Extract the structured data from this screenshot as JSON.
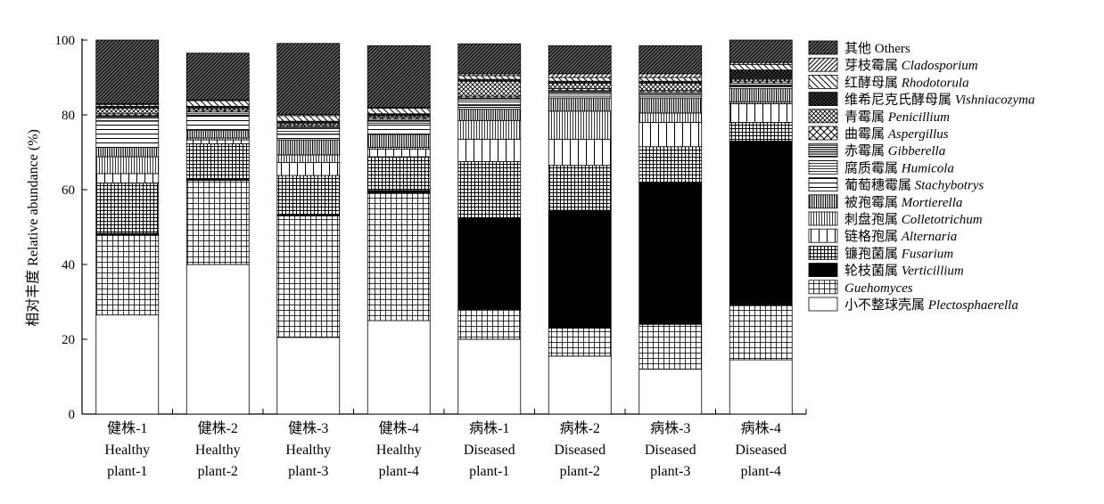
{
  "chart_data": {
    "type": "bar",
    "stacked": true,
    "ylabel": "相对丰度 Relative abundance (%)",
    "ylim": [
      0,
      100
    ],
    "yticks": [
      0,
      20,
      40,
      60,
      80,
      100
    ],
    "grid": false,
    "legend_placement": "right",
    "categories": [
      {
        "line1": "健株-1",
        "line2": "Healthy",
        "line3": "plant-1"
      },
      {
        "line1": "健株-2",
        "line2": "Healthy",
        "line3": "plant-2"
      },
      {
        "line1": "健株-3",
        "line2": "Healthy",
        "line3": "plant-3"
      },
      {
        "line1": "健株-4",
        "line2": "Healthy",
        "line3": "plant-4"
      },
      {
        "line1": "病株-1",
        "line2": "Diseased",
        "line3": "plant-1"
      },
      {
        "line1": "病株-2",
        "line2": "Diseased",
        "line3": "plant-2"
      },
      {
        "line1": "病株-3",
        "line2": "Diseased",
        "line3": "plant-3"
      },
      {
        "line1": "病株-4",
        "line2": "Diseased",
        "line3": "plant-4"
      }
    ],
    "series": [
      {
        "cn": "小不整球壳属",
        "latin": "Plectosphaerella",
        "pattern": "white",
        "values": [
          26.5,
          40,
          20.5,
          25,
          20,
          15.5,
          12,
          14.5
        ]
      },
      {
        "cn": "",
        "latin": "Guehomyces",
        "pattern": "grid-fine",
        "values": [
          21.5,
          22.5,
          32.5,
          34,
          8,
          7.5,
          12,
          14.5
        ]
      },
      {
        "cn": "轮枝菌属",
        "latin": "Verticillium",
        "pattern": "black",
        "values": [
          0.3,
          0.3,
          0.3,
          0.8,
          24.5,
          31.5,
          38,
          44
        ]
      },
      {
        "cn": "镰孢菌属",
        "latin": "Fusarium",
        "pattern": "grid-dense",
        "values": [
          13.5,
          9.5,
          10.5,
          9,
          15,
          12,
          9.5,
          5
        ]
      },
      {
        "cn": "链格孢属",
        "latin": "Alternaria",
        "pattern": "vlines-wide",
        "values": [
          2.5,
          1,
          3.5,
          2,
          6,
          7,
          6.5,
          5
        ]
      },
      {
        "cn": "刺盘孢属",
        "latin": "Colletotrichum",
        "pattern": "vlines-fine",
        "values": [
          4.5,
          0.5,
          2,
          0.5,
          5,
          7.5,
          2.5,
          0.5
        ]
      },
      {
        "cn": "被孢霉属",
        "latin": "Mortierella",
        "pattern": "vlines-dense",
        "values": [
          2.5,
          2,
          4,
          3.5,
          3,
          3.5,
          4,
          3.5
        ]
      },
      {
        "cn": "葡萄穗霉属",
        "latin": "Stachybotrys",
        "pattern": "hlines-wide",
        "values": [
          7,
          4,
          1.5,
          3,
          1,
          0.5,
          0.5,
          0.5
        ]
      },
      {
        "cn": "腐质霉属",
        "latin": "Humicola",
        "pattern": "hlines-fine",
        "values": [
          1,
          0.5,
          1.5,
          0.5,
          1.5,
          1,
          0.5,
          0.5
        ]
      },
      {
        "cn": "赤霉属",
        "latin": "Gibberella",
        "pattern": "hlines-dense",
        "values": [
          0.5,
          0.5,
          0.5,
          0.5,
          0.5,
          0.5,
          0.5,
          0.5
        ]
      },
      {
        "cn": "曲霉属",
        "latin": "Aspergillus",
        "pattern": "diag-cross",
        "values": [
          0.5,
          0.5,
          0.5,
          0.5,
          0.5,
          0.5,
          0.5,
          0.5
        ]
      },
      {
        "cn": "青霉属",
        "latin": "Penicillium",
        "pattern": "cross-hatch",
        "values": [
          1.5,
          0.5,
          0.5,
          0.5,
          4,
          1.5,
          2,
          0.5
        ]
      },
      {
        "cn": "维希尼克氏酵母属",
        "latin": "Vishniacozyma",
        "pattern": "cross-hatch-dense",
        "values": [
          0.5,
          0.5,
          0.5,
          0.5,
          0.5,
          0.5,
          0.5,
          2.5
        ]
      },
      {
        "cn": "红酵母属",
        "latin": "Rhodotorula",
        "pattern": "diag-back",
        "values": [
          0.5,
          1.5,
          1.5,
          1.5,
          1,
          1,
          1,
          1.5
        ]
      },
      {
        "cn": "芽枝霉属",
        "latin": "Cladosporium",
        "pattern": "diag-fwd",
        "values": [
          0.2,
          0.2,
          0.3,
          0.2,
          0.5,
          1,
          1,
          0.5
        ]
      },
      {
        "cn": "其他",
        "latin": "Others",
        "pattern": "diag-dense",
        "values": [
          17,
          12.5,
          19,
          16.5,
          8,
          7.5,
          7.5,
          6
        ]
      }
    ]
  }
}
